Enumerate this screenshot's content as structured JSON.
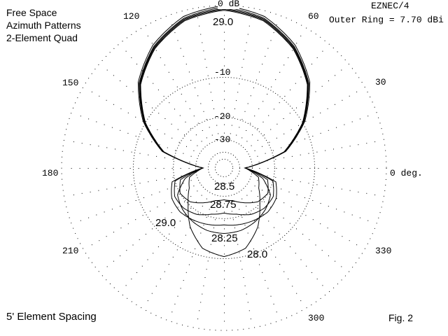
{
  "header": {
    "title_lines": [
      "Free Space",
      "Azimuth Patterns",
      "2-Element Quad"
    ],
    "program": "EZNEC/4",
    "outer_ring": "Outer Ring = 7.70 dBi"
  },
  "footer": {
    "spacing": "5' Element Spacing",
    "figure": "Fig. 2"
  },
  "chart_data": {
    "type": "polar-line",
    "scale": "ARRL log (dB)",
    "outer_ring_dbi": 7.7,
    "ring_labels": [
      "0 dB",
      "-10",
      "-20",
      "-30"
    ],
    "rings_db": [
      0,
      -10,
      -20,
      -30,
      -40,
      -50
    ],
    "angle_labels": {
      "0": "0 deg.",
      "30": "30",
      "60": "60",
      "120": "120",
      "150": "150",
      "180": "180",
      "210": "210",
      "300": "300",
      "330": "330"
    },
    "angles_deg": [
      0,
      15,
      30,
      45,
      60,
      75,
      90,
      105,
      120,
      135,
      150,
      165,
      180,
      195,
      210,
      225,
      240,
      255,
      270,
      285,
      300,
      315,
      330,
      345
    ],
    "series": [
      {
        "name": "28.0",
        "label_positions": [
          "bottom-right"
        ],
        "values_db": [
          -35,
          -16.5,
          -10,
          -5.5,
          -2.8,
          -1.1,
          -0.5,
          -1.1,
          -2.8,
          -5.5,
          -10,
          -16.5,
          -35,
          -26,
          -24,
          -20,
          -15,
          -11.5,
          -10.4,
          -11.5,
          -15,
          -20,
          -24,
          -26
        ]
      },
      {
        "name": "28.25",
        "label_positions": [
          "bottom"
        ],
        "values_db": [
          -35,
          -16.4,
          -9.9,
          -5.4,
          -2.7,
          -1.0,
          -0.4,
          -1.0,
          -2.7,
          -5.4,
          -9.9,
          -16.4,
          -35,
          -24,
          -19,
          -17.5,
          -16.5,
          -15.8,
          -15.6,
          -15.8,
          -16.5,
          -17.5,
          -19,
          -24
        ]
      },
      {
        "name": "28.5",
        "label_positions": [
          "center"
        ],
        "values_db": [
          -35,
          -16.3,
          -9.8,
          -5.3,
          -2.6,
          -0.9,
          -0.3,
          -0.9,
          -2.6,
          -5.3,
          -9.8,
          -16.3,
          -35,
          -22,
          -20,
          -21,
          -24,
          -27,
          -28,
          -27,
          -24,
          -21,
          -20,
          -22
        ]
      },
      {
        "name": "28.75",
        "label_positions": [
          "center"
        ],
        "values_db": [
          -35,
          -16.2,
          -9.7,
          -5.2,
          -2.5,
          -0.8,
          -0.15,
          -0.8,
          -2.5,
          -5.2,
          -9.7,
          -16.2,
          -35,
          -20,
          -18,
          -18,
          -19,
          -21,
          -22,
          -21,
          -19,
          -18,
          -18,
          -20
        ]
      },
      {
        "name": "29.0",
        "label_positions": [
          "top",
          "bottom-left"
        ],
        "values_db": [
          -35,
          -16,
          -9.5,
          -5,
          -2.3,
          -0.6,
          0,
          -0.6,
          -2.3,
          -5,
          -9.5,
          -16,
          -35,
          -19,
          -17,
          -16.5,
          -17,
          -17.5,
          -18,
          -17.5,
          -17,
          -16.5,
          -17,
          -19
        ]
      }
    ]
  }
}
